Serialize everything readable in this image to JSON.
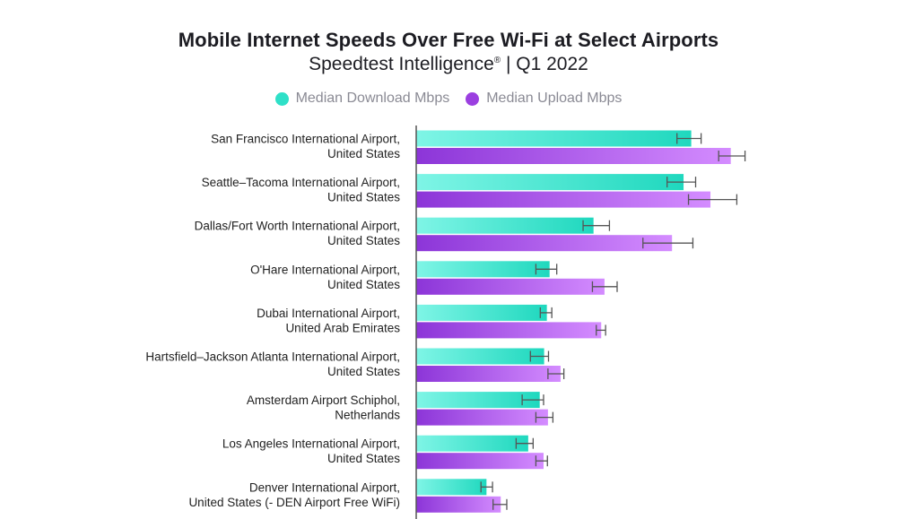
{
  "header": {
    "title": "Mobile Internet Speeds Over Free Wi-Fi at Select Airports",
    "subtitle_main": "Speedtest Intelligence",
    "subtitle_reg": "®",
    "subtitle_tail": " | Q1 2022"
  },
  "legend": {
    "download_label": "Median Download Mbps",
    "upload_label": "Median Upload Mbps",
    "download_color": "#2fe0c8",
    "upload_color": "#9b3fe0"
  },
  "chart_data": {
    "type": "bar",
    "orientation": "horizontal",
    "title": "Mobile Internet Speeds Over Free Wi-Fi at Select Airports",
    "subtitle": "Speedtest Intelligence® | Q1 2022",
    "legend_position": "top",
    "grid": false,
    "xlim": [
      0,
      57
    ],
    "categories": [
      [
        "San Francisco International Airport,",
        "United States"
      ],
      [
        "Seattle–Tacoma International Airport,",
        "United States"
      ],
      [
        "Dallas/Fort Worth International Airport,",
        "United States"
      ],
      [
        "O'Hare International Airport,",
        "United States"
      ],
      [
        "Dubai International Airport,",
        "United Arab Emirates"
      ],
      [
        "Hartsfield–Jackson Atlanta International Airport,",
        "United States"
      ],
      [
        "Amsterdam Airport Schiphol,",
        "Netherlands"
      ],
      [
        "Los Angeles International Airport,",
        "United States"
      ],
      [
        "Denver International Airport,",
        "United States (- DEN Airport Free WiFi)"
      ]
    ],
    "series": [
      {
        "name": "Median Download Mbps",
        "values": [
          50.1,
          48.7,
          32.3,
          24.3,
          23.8,
          23.3,
          22.5,
          20.4,
          12.8
        ],
        "error_low": [
          47.5,
          45.7,
          30.4,
          21.8,
          22.6,
          20.8,
          19.3,
          18.2,
          11.8
        ],
        "error_high": [
          51.9,
          50.9,
          35.2,
          25.6,
          24.7,
          24.1,
          23.2,
          21.3,
          13.9
        ]
      },
      {
        "name": "Median Upload Mbps",
        "values": [
          57.3,
          53.6,
          46.6,
          34.3,
          33.7,
          26.3,
          24.0,
          23.2,
          15.4
        ],
        "error_low": [
          55.1,
          49.6,
          41.3,
          32.1,
          32.8,
          24.0,
          21.8,
          21.8,
          14.0
        ],
        "error_high": [
          59.9,
          58.4,
          50.4,
          36.6,
          34.5,
          26.9,
          24.9,
          23.9,
          16.5
        ]
      }
    ]
  }
}
